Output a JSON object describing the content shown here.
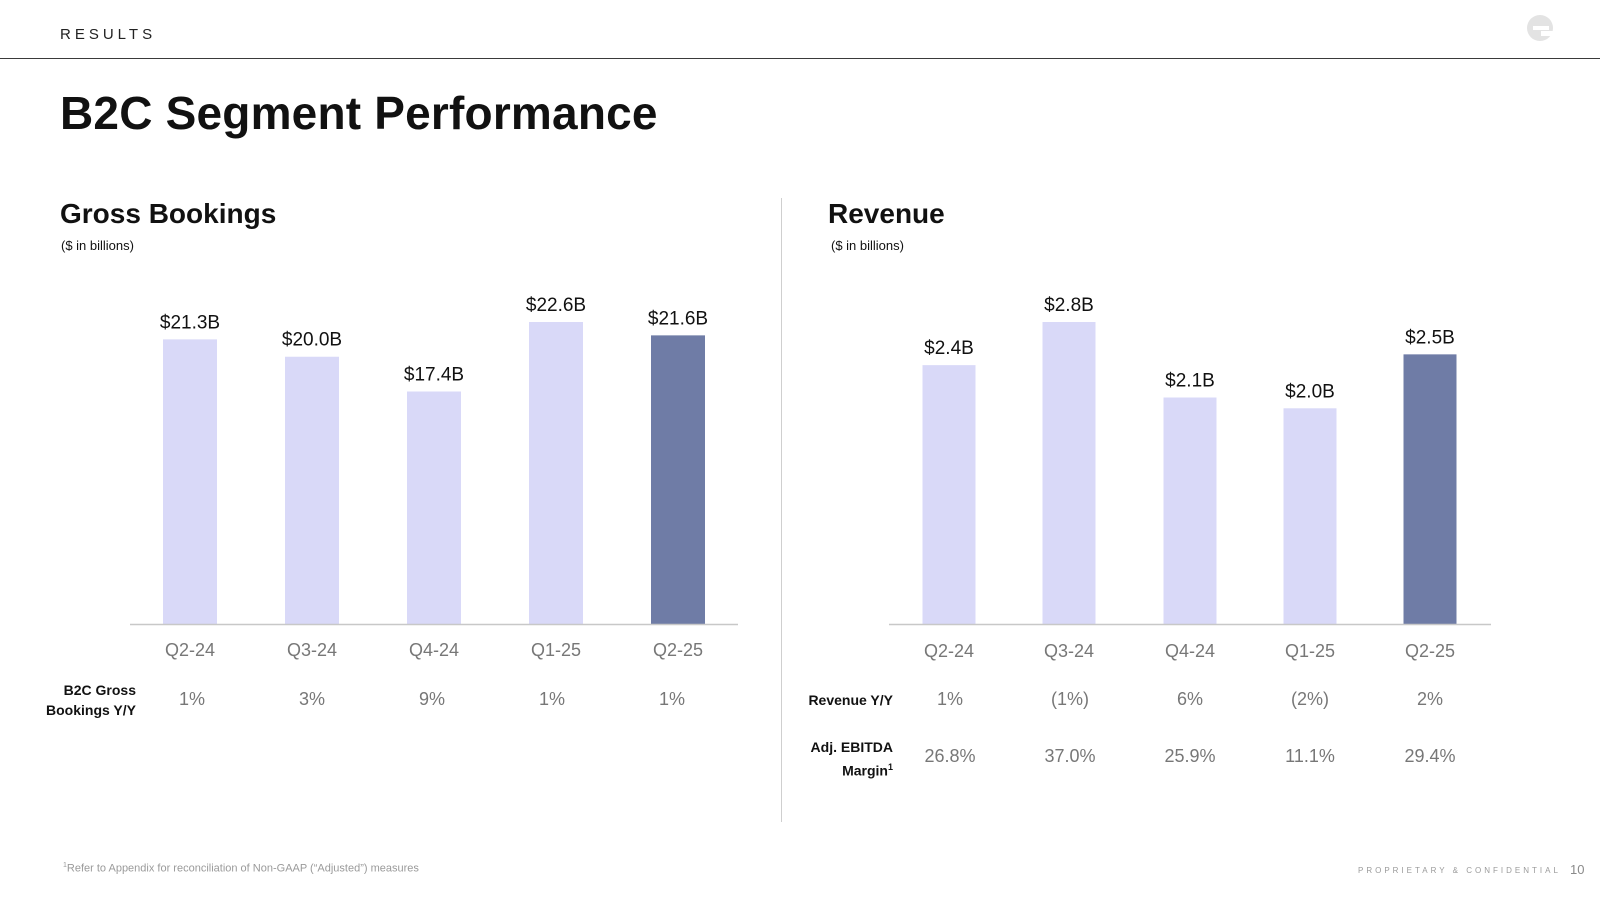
{
  "header": {
    "section_label": "RESULTS",
    "page_title": "B2C Segment Performance"
  },
  "colors": {
    "bar_prior": "#d9d9f8",
    "bar_current": "#6f7ca6",
    "axis": "#c8c8c8",
    "tick": "#777777"
  },
  "chart_data": [
    {
      "type": "bar",
      "title": "Gross Bookings",
      "subtitle": "($ in billions)",
      "categories": [
        "Q2-24",
        "Q3-24",
        "Q4-24",
        "Q1-25",
        "Q2-25"
      ],
      "values": [
        21.3,
        20.0,
        17.4,
        22.6,
        21.6
      ],
      "data_labels": [
        "$21.3B",
        "$20.0B",
        "$17.4B",
        "$22.6B",
        "$21.6B"
      ],
      "highlight_index": 4,
      "ylim": [
        0,
        22.6
      ]
    },
    {
      "type": "bar",
      "title": "Revenue",
      "subtitle": "($ in billions)",
      "categories": [
        "Q2-24",
        "Q3-24",
        "Q4-24",
        "Q1-25",
        "Q2-25"
      ],
      "values": [
        2.4,
        2.8,
        2.1,
        2.0,
        2.5
      ],
      "data_labels": [
        "$2.4B",
        "$2.8B",
        "$2.1B",
        "$2.0B",
        "$2.5B"
      ],
      "highlight_index": 4,
      "ylim": [
        0,
        2.8
      ]
    }
  ],
  "metrics": {
    "gb_yy": {
      "label_line1": "B2C Gross",
      "label_line2": "Bookings Y/Y",
      "values": [
        "1%",
        "3%",
        "9%",
        "1%",
        "1%"
      ]
    },
    "rev_yy": {
      "label": "Revenue Y/Y",
      "values": [
        "1%",
        "(1%)",
        "6%",
        "(2%)",
        "2%"
      ]
    },
    "ebitda": {
      "label_line1": "Adj. EBITDA",
      "label_line2": "Margin",
      "label_sup": "1",
      "values": [
        "26.8%",
        "37.0%",
        "25.9%",
        "11.1%",
        "29.4%"
      ]
    }
  },
  "footer": {
    "footnote_sup": "1",
    "footnote": "Refer to Appendix for reconciliation of Non-GAAP (“Adjusted”) measures",
    "confidential": "PROPRIETARY & CONFIDENTIAL",
    "page_number": "10"
  }
}
